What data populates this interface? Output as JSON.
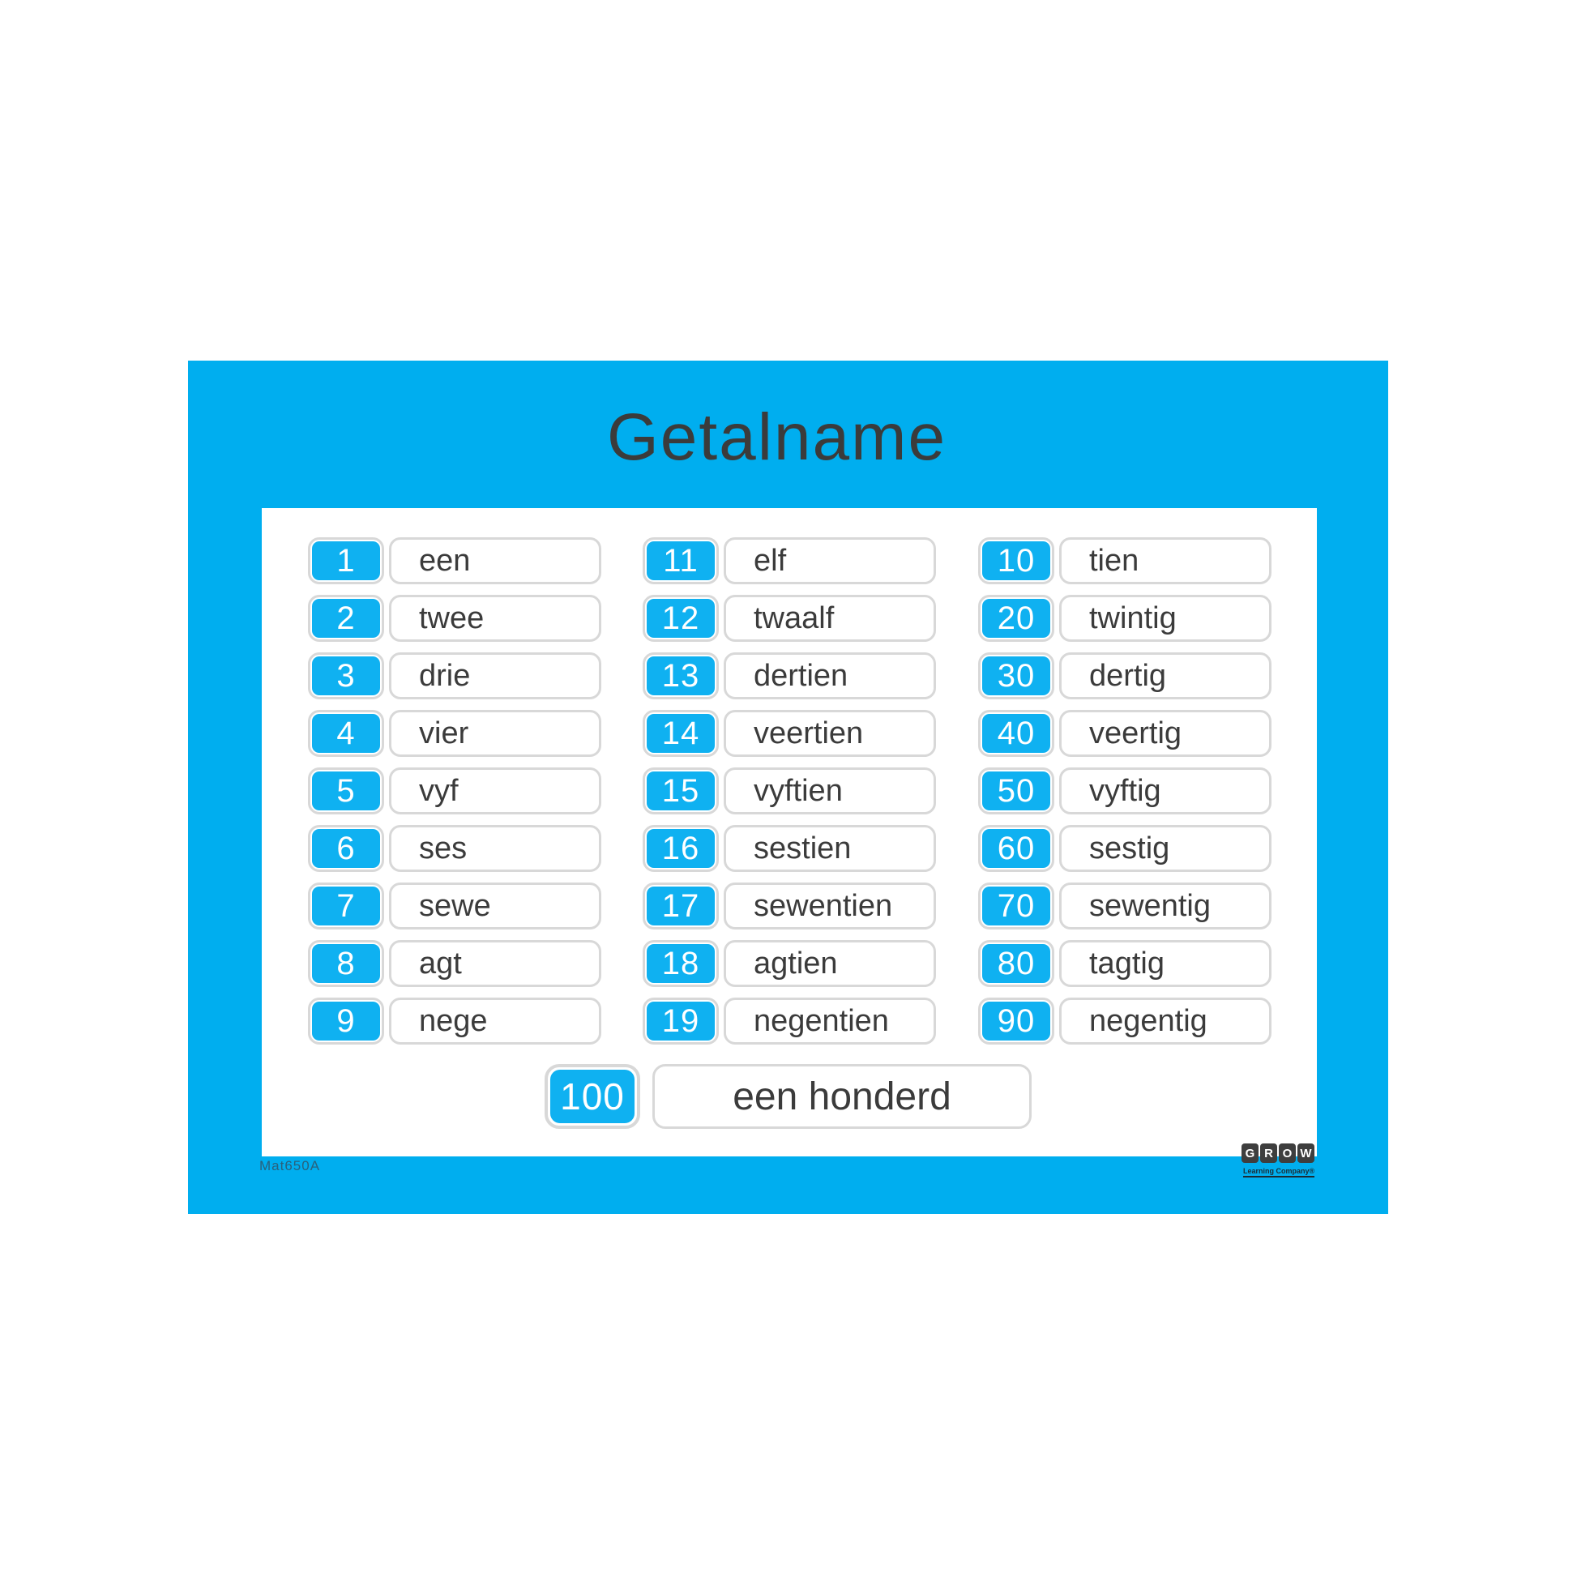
{
  "poster": {
    "title": "Getalname",
    "footer_code": "Mat650A",
    "colors": {
      "poster_blue": "#00AEEF",
      "tile_blue": "#0FB1F1",
      "border_gray": "#D8D8D8",
      "text_dark": "#3B3B3B",
      "code_text": "#2A617C",
      "logo_tile": "#3E3E3E"
    },
    "columns": [
      {
        "items": [
          {
            "number": "1",
            "word": "een"
          },
          {
            "number": "2",
            "word": "twee"
          },
          {
            "number": "3",
            "word": "drie"
          },
          {
            "number": "4",
            "word": "vier"
          },
          {
            "number": "5",
            "word": "vyf"
          },
          {
            "number": "6",
            "word": "ses"
          },
          {
            "number": "7",
            "word": "sewe"
          },
          {
            "number": "8",
            "word": "agt"
          },
          {
            "number": "9",
            "word": "nege"
          }
        ]
      },
      {
        "items": [
          {
            "number": "11",
            "word": "elf"
          },
          {
            "number": "12",
            "word": "twaalf"
          },
          {
            "number": "13",
            "word": "dertien"
          },
          {
            "number": "14",
            "word": "veertien"
          },
          {
            "number": "15",
            "word": "vyftien"
          },
          {
            "number": "16",
            "word": "sestien"
          },
          {
            "number": "17",
            "word": "sewentien"
          },
          {
            "number": "18",
            "word": "agtien"
          },
          {
            "number": "19",
            "word": "negentien"
          }
        ]
      },
      {
        "items": [
          {
            "number": "10",
            "word": "tien"
          },
          {
            "number": "20",
            "word": "twintig"
          },
          {
            "number": "30",
            "word": "dertig"
          },
          {
            "number": "40",
            "word": "veertig"
          },
          {
            "number": "50",
            "word": "vyftig"
          },
          {
            "number": "60",
            "word": "sestig"
          },
          {
            "number": "70",
            "word": "sewentig"
          },
          {
            "number": "80",
            "word": "tagtig"
          },
          {
            "number": "90",
            "word": "negentig"
          }
        ]
      }
    ],
    "hundred": {
      "number": "100",
      "word": "een honderd"
    },
    "logo": {
      "letters": [
        "G",
        "R",
        "O",
        "W"
      ],
      "tagline": "Learning Company®"
    }
  }
}
